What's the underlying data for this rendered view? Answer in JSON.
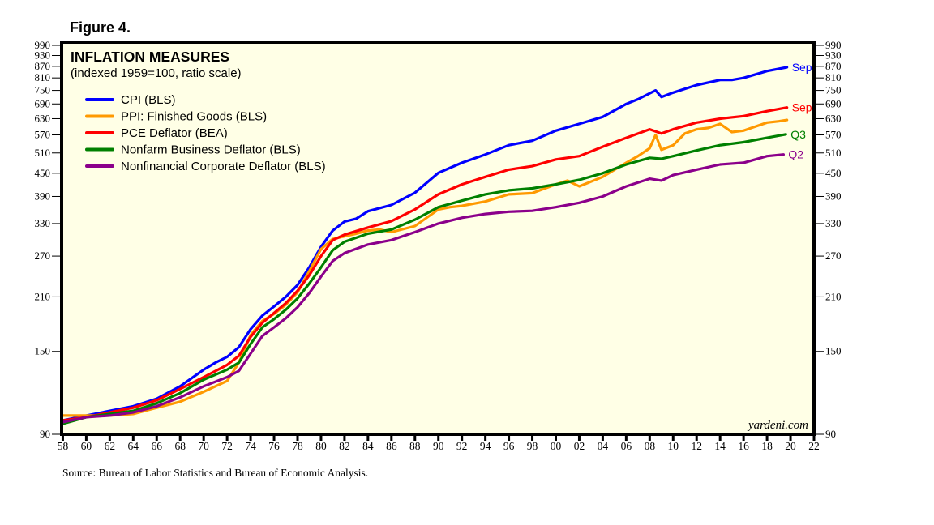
{
  "figure_label": "Figure 4.",
  "source_note": "Source: Bureau of Labor Statistics and Bureau of Economic Analysis.",
  "watermark": "yardeni.com",
  "chart_data": {
    "type": "line",
    "title": "INFLATION MEASURES",
    "subtitle": "(indexed 1959=100, ratio scale)",
    "xlabel": "",
    "ylabel": "",
    "y_scale": "log",
    "ylim": [
      90,
      1000
    ],
    "xlim": [
      1957.9,
      2022
    ],
    "y_ticks": [
      90,
      150,
      210,
      270,
      330,
      390,
      450,
      510,
      570,
      630,
      690,
      750,
      810,
      870,
      930,
      990
    ],
    "y_ticks_both_sides": true,
    "x_ticks": [
      1958,
      1960,
      1962,
      1964,
      1966,
      1968,
      1970,
      1972,
      1974,
      1976,
      1978,
      1980,
      1982,
      1984,
      1986,
      1988,
      1990,
      1992,
      1994,
      1996,
      1998,
      2000,
      2002,
      2004,
      2006,
      2008,
      2010,
      2012,
      2014,
      2016,
      2018,
      2020,
      2022
    ],
    "x_tick_labels": [
      "58",
      "60",
      "62",
      "64",
      "66",
      "68",
      "70",
      "72",
      "74",
      "76",
      "78",
      "80",
      "82",
      "84",
      "86",
      "88",
      "90",
      "92",
      "94",
      "96",
      "98",
      "00",
      "02",
      "04",
      "06",
      "08",
      "10",
      "12",
      "14",
      "16",
      "18",
      "20",
      "22"
    ],
    "grid": false,
    "legend_position": "top-left",
    "background": "#ffffe6",
    "series": [
      {
        "name": "CPI (BLS)",
        "color": "#0000ff",
        "end_label": "Sep",
        "x": [
          1958,
          1960,
          1962,
          1964,
          1966,
          1968,
          1970,
          1971,
          1972,
          1973,
          1974,
          1975,
          1976,
          1977,
          1978,
          1979,
          1980,
          1981,
          1982,
          1983,
          1984,
          1986,
          1988,
          1990,
          1992,
          1994,
          1996,
          1998,
          2000,
          2002,
          2004,
          2006,
          2007,
          2008.5,
          2009,
          2010,
          2012,
          2014,
          2015,
          2016,
          2018,
          2019.7
        ],
        "values": [
          98,
          101,
          104,
          107,
          112,
          121,
          134,
          140,
          145,
          154,
          172,
          187,
          198,
          210,
          226,
          252,
          286,
          316,
          334,
          340,
          356,
          370,
          399,
          451,
          480,
          505,
          535,
          550,
          585,
          610,
          637,
          690,
          710,
          750,
          720,
          740,
          775,
          800,
          800,
          810,
          845,
          865
        ]
      },
      {
        "name": "PPI: Finished Goods (BLS)",
        "color": "#ff9900",
        "end_label": "",
        "x": [
          1958,
          1960,
          1962,
          1964,
          1966,
          1968,
          1970,
          1971,
          1972,
          1973,
          1974,
          1975,
          1976,
          1977,
          1978,
          1979,
          1980,
          1981,
          1982,
          1983,
          1984,
          1985,
          1986,
          1988,
          1990,
          1991,
          1992,
          1994,
          1996,
          1998,
          2000,
          2001,
          2002,
          2004,
          2006,
          2007,
          2008,
          2008.5,
          2009,
          2010,
          2011,
          2012,
          2013,
          2014,
          2015,
          2016,
          2017,
          2018,
          2019,
          2019.7
        ],
        "values": [
          101,
          101,
          101,
          102,
          106,
          110,
          117,
          121,
          125,
          140,
          166,
          181,
          189,
          200,
          216,
          246,
          282,
          300,
          305,
          310,
          316,
          318,
          313,
          325,
          360,
          365,
          368,
          378,
          395,
          398,
          420,
          430,
          415,
          440,
          480,
          500,
          525,
          570,
          520,
          535,
          575,
          590,
          595,
          610,
          580,
          585,
          600,
          615,
          620,
          625
        ]
      },
      {
        "name": "PCE Deflator (BEA)",
        "color": "#ff0000",
        "end_label": "Sep",
        "x": [
          1958,
          1960,
          1962,
          1964,
          1966,
          1968,
          1970,
          1972,
          1973,
          1974,
          1975,
          1976,
          1977,
          1978,
          1979,
          1980,
          1981,
          1982,
          1984,
          1986,
          1988,
          1990,
          1992,
          1994,
          1996,
          1998,
          2000,
          2002,
          2004,
          2006,
          2008,
          2009,
          2010,
          2012,
          2014,
          2016,
          2018,
          2019.7
        ],
        "values": [
          98,
          100,
          103,
          106,
          111,
          119,
          128,
          138,
          146,
          164,
          179,
          190,
          202,
          218,
          240,
          270,
          298,
          308,
          322,
          335,
          360,
          395,
          420,
          440,
          460,
          470,
          490,
          500,
          530,
          560,
          590,
          575,
          590,
          615,
          630,
          640,
          660,
          675
        ]
      },
      {
        "name": "Nonfarm Business Deflator (BLS)",
        "color": "#008000",
        "end_label": "Q3",
        "x": [
          1958,
          1960,
          1962,
          1964,
          1966,
          1968,
          1970,
          1972,
          1973,
          1974,
          1975,
          1976,
          1977,
          1978,
          1979,
          1980,
          1981,
          1982,
          1984,
          1986,
          1988,
          1990,
          1992,
          1994,
          1996,
          1998,
          2000,
          2002,
          2004,
          2006,
          2008,
          2009,
          2010,
          2012,
          2014,
          2016,
          2018,
          2019.6
        ],
        "values": [
          96,
          100,
          102,
          104,
          109,
          116,
          126,
          134,
          140,
          157,
          174,
          183,
          194,
          208,
          228,
          252,
          280,
          295,
          310,
          318,
          338,
          365,
          380,
          395,
          405,
          410,
          420,
          432,
          450,
          475,
          495,
          492,
          500,
          518,
          535,
          545,
          560,
          572
        ]
      },
      {
        "name": "Nonfinancial Corporate Deflator (BLS)",
        "color": "#8b008b",
        "end_label": "Q2",
        "x": [
          1958,
          1960,
          1962,
          1964,
          1966,
          1968,
          1970,
          1972,
          1973,
          1974,
          1975,
          1976,
          1977,
          1978,
          1979,
          1980,
          1981,
          1982,
          1984,
          1986,
          1988,
          1990,
          1992,
          1994,
          1996,
          1998,
          2000,
          2002,
          2004,
          2006,
          2008,
          2009,
          2010,
          2012,
          2014,
          2016,
          2018,
          2019.4
        ],
        "values": [
          97,
          100,
          101,
          103,
          107,
          113,
          121,
          128,
          133,
          148,
          165,
          174,
          184,
          197,
          215,
          238,
          262,
          275,
          290,
          298,
          313,
          330,
          342,
          350,
          355,
          357,
          365,
          375,
          390,
          415,
          435,
          430,
          445,
          460,
          475,
          480,
          500,
          505
        ]
      }
    ]
  }
}
